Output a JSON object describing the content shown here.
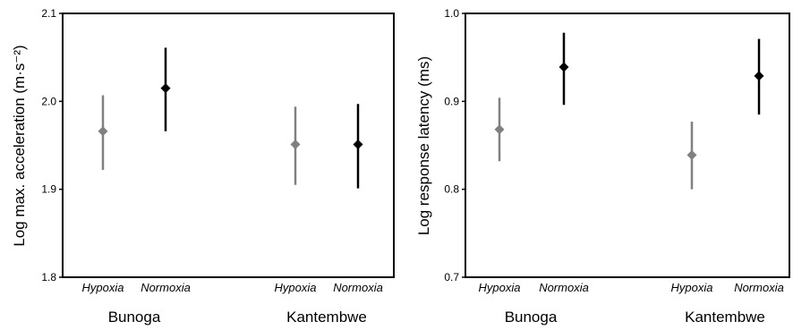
{
  "chart_data": [
    {
      "type": "scatter",
      "ylabel": "Log max. acceleration (m·s⁻²)",
      "ylim": [
        1.8,
        2.1
      ],
      "yticks": [
        "1.8",
        "1.9",
        "2.0",
        "2.1"
      ],
      "ytick_values": [
        1.8,
        1.9,
        2.0,
        2.1
      ],
      "categories": [
        "Hypoxia",
        "Normoxia",
        "Hypoxia",
        "Normoxia"
      ],
      "groups": [
        "Bunoga",
        "Kantembwe"
      ],
      "points": [
        {
          "group": "Bunoga",
          "category": "Hypoxia",
          "mean": 1.966,
          "lower": 1.922,
          "upper": 2.007,
          "color": "#808080"
        },
        {
          "group": "Bunoga",
          "category": "Normoxia",
          "mean": 2.015,
          "lower": 1.966,
          "upper": 2.061,
          "color": "#000000"
        },
        {
          "group": "Kantembwe",
          "category": "Hypoxia",
          "mean": 1.951,
          "lower": 1.905,
          "upper": 1.994,
          "color": "#808080"
        },
        {
          "group": "Kantembwe",
          "category": "Normoxia",
          "mean": 1.951,
          "lower": 1.901,
          "upper": 1.997,
          "color": "#000000"
        }
      ],
      "grid": false,
      "legend": "none"
    },
    {
      "type": "scatter",
      "ylabel": "Log response latency (ms)",
      "ylim": [
        0.7,
        1.0
      ],
      "yticks": [
        "0.7",
        "0.8",
        "0.9",
        "1.0"
      ],
      "ytick_values": [
        0.7,
        0.8,
        0.9,
        1.0
      ],
      "categories": [
        "Hypoxia",
        "Normoxia",
        "Hypoxia",
        "Normoxia"
      ],
      "groups": [
        "Bunoga",
        "Kantembwe"
      ],
      "points": [
        {
          "group": "Bunoga",
          "category": "Hypoxia",
          "mean": 0.868,
          "lower": 0.832,
          "upper": 0.904,
          "color": "#808080"
        },
        {
          "group": "Bunoga",
          "category": "Normoxia",
          "mean": 0.939,
          "lower": 0.896,
          "upper": 0.978,
          "color": "#000000"
        },
        {
          "group": "Kantembwe",
          "category": "Hypoxia",
          "mean": 0.839,
          "lower": 0.8,
          "upper": 0.877,
          "color": "#808080"
        },
        {
          "group": "Kantembwe",
          "category": "Normoxia",
          "mean": 0.929,
          "lower": 0.885,
          "upper": 0.971,
          "color": "#000000"
        }
      ],
      "grid": false,
      "legend": "none"
    }
  ]
}
